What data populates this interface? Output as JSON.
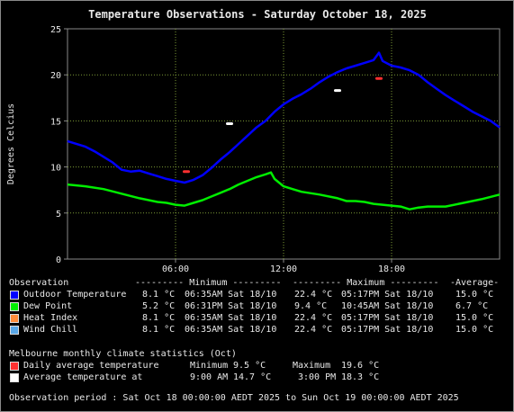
{
  "chart_data": {
    "type": "line",
    "title": "Temperature Observations - Saturday October 18, 2025",
    "ylabel": "Degrees Celcius",
    "xlabel": "",
    "ylim": [
      0,
      25
    ],
    "yticks": [
      "0",
      "5",
      "10",
      "15",
      "20",
      "25"
    ],
    "xlim_hours": [
      0,
      24
    ],
    "xticks": [
      {
        "hour": 6,
        "label": "06:00"
      },
      {
        "hour": 12,
        "label": "12:00"
      },
      {
        "hour": 18,
        "label": "18:00"
      }
    ],
    "grid": true,
    "series": [
      {
        "name": "Outdoor Temperature",
        "color": "#0000ff",
        "x": [
          0,
          1,
          1.5,
          2,
          2.5,
          3,
          3.5,
          4,
          4.5,
          5,
          5.5,
          6,
          6.5,
          7,
          7.5,
          8,
          8.5,
          9,
          9.5,
          10,
          10.5,
          11,
          11.5,
          12,
          12.5,
          13,
          13.5,
          14,
          14.5,
          15,
          15.5,
          16,
          16.5,
          17,
          17.3,
          17.5,
          18,
          18.5,
          19,
          19.5,
          20,
          20.5,
          21,
          21.5,
          22,
          22.5,
          23,
          23.5,
          24
        ],
        "y": [
          12.8,
          12.2,
          11.7,
          11.1,
          10.5,
          9.7,
          9.5,
          9.6,
          9.3,
          9.0,
          8.7,
          8.5,
          8.3,
          8.6,
          9.1,
          9.9,
          10.8,
          11.6,
          12.5,
          13.4,
          14.3,
          15.0,
          16.0,
          16.8,
          17.4,
          17.9,
          18.5,
          19.2,
          19.8,
          20.3,
          20.7,
          21.0,
          21.3,
          21.6,
          22.4,
          21.5,
          21.0,
          20.8,
          20.5,
          20.0,
          19.2,
          18.5,
          17.8,
          17.2,
          16.6,
          16.0,
          15.5,
          15.0,
          14.3
        ]
      },
      {
        "name": "Dew Point",
        "color": "#00ee00",
        "x": [
          0,
          1,
          2,
          3,
          4,
          5,
          5.5,
          6,
          6.5,
          7,
          7.5,
          8,
          8.5,
          9,
          9.5,
          10,
          10.5,
          11,
          11.3,
          11.5,
          12,
          12.5,
          13,
          14,
          15,
          15.5,
          16,
          16.5,
          17,
          17.5,
          18,
          18.5,
          19,
          19.5,
          20,
          21,
          22,
          23,
          24
        ],
        "y": [
          8.1,
          7.9,
          7.6,
          7.1,
          6.6,
          6.2,
          6.1,
          5.9,
          5.8,
          6.1,
          6.4,
          6.8,
          7.2,
          7.6,
          8.1,
          8.5,
          8.9,
          9.2,
          9.4,
          8.7,
          7.9,
          7.6,
          7.3,
          7.0,
          6.6,
          6.3,
          6.3,
          6.2,
          6.0,
          5.9,
          5.8,
          5.7,
          5.4,
          5.6,
          5.7,
          5.7,
          6.1,
          6.5,
          7.0
        ]
      },
      {
        "name": "Heat Index",
        "color": "#ff8c3a",
        "x": [],
        "y": []
      },
      {
        "name": "Wind Chill",
        "color": "#5aa8e8",
        "x": [],
        "y": []
      }
    ],
    "markers": [
      {
        "series": "Daily average temperature",
        "color": "#ff3030",
        "points": [
          {
            "x": 6.6,
            "y": 9.5
          },
          {
            "x": 17.3,
            "y": 19.6
          }
        ]
      },
      {
        "series": "Average temperature at",
        "color": "#ffffff",
        "points": [
          {
            "x": 9.0,
            "y": 14.7
          },
          {
            "x": 15.0,
            "y": 18.3
          }
        ]
      }
    ]
  },
  "summary": {
    "header": {
      "label": "Observation",
      "minimum": "--------- Minimum ---------",
      "maximum": "--------- Maximum ---------",
      "average": "-Average-"
    },
    "rows": [
      {
        "name": "Outdoor Temperature",
        "color": "#0000ff",
        "min": "8.1 °C",
        "min_time": "06:35AM Sat 18/10",
        "max": "22.4 °C",
        "max_time": "05:17PM Sat 18/10",
        "avg": "15.0 °C"
      },
      {
        "name": "Dew Point",
        "color": "#00ee00",
        "min": "5.2 °C",
        "min_time": "06:31PM Sat 18/10",
        "max": "9.4 °C",
        "max_time": "10:45AM Sat 18/10",
        "avg": "6.7 °C"
      },
      {
        "name": "Heat Index",
        "color": "#ff8c3a",
        "min": "8.1 °C",
        "min_time": "06:35AM Sat 18/10",
        "max": "22.4 °C",
        "max_time": "05:17PM Sat 18/10",
        "avg": "15.0 °C"
      },
      {
        "name": "Wind Chill",
        "color": "#5aa8e8",
        "min": "8.1 °C",
        "min_time": "06:35AM Sat 18/10",
        "max": "22.4 °C",
        "max_time": "05:17PM Sat 18/10",
        "avg": "15.0 °C"
      }
    ]
  },
  "climate": {
    "title": "Melbourne monthly climate statistics (Oct)",
    "daily": {
      "label": "Daily average temperature",
      "color": "#ff3030",
      "min_label": "Minimum",
      "min": "9.5 °C",
      "max_label": "Maximum",
      "max": "19.6 °C"
    },
    "avg_at": {
      "label": "Average temperature at",
      "color": "#ffffff",
      "t1": "9:00 AM",
      "v1": "14.7 °C",
      "t2": "3:00 PM",
      "v2": "18.3 °C"
    }
  },
  "period": "Observation period : Sat Oct 18 00:00:00 AEDT 2025 to Sun Oct 19 00:00:00 AEDT 2025"
}
